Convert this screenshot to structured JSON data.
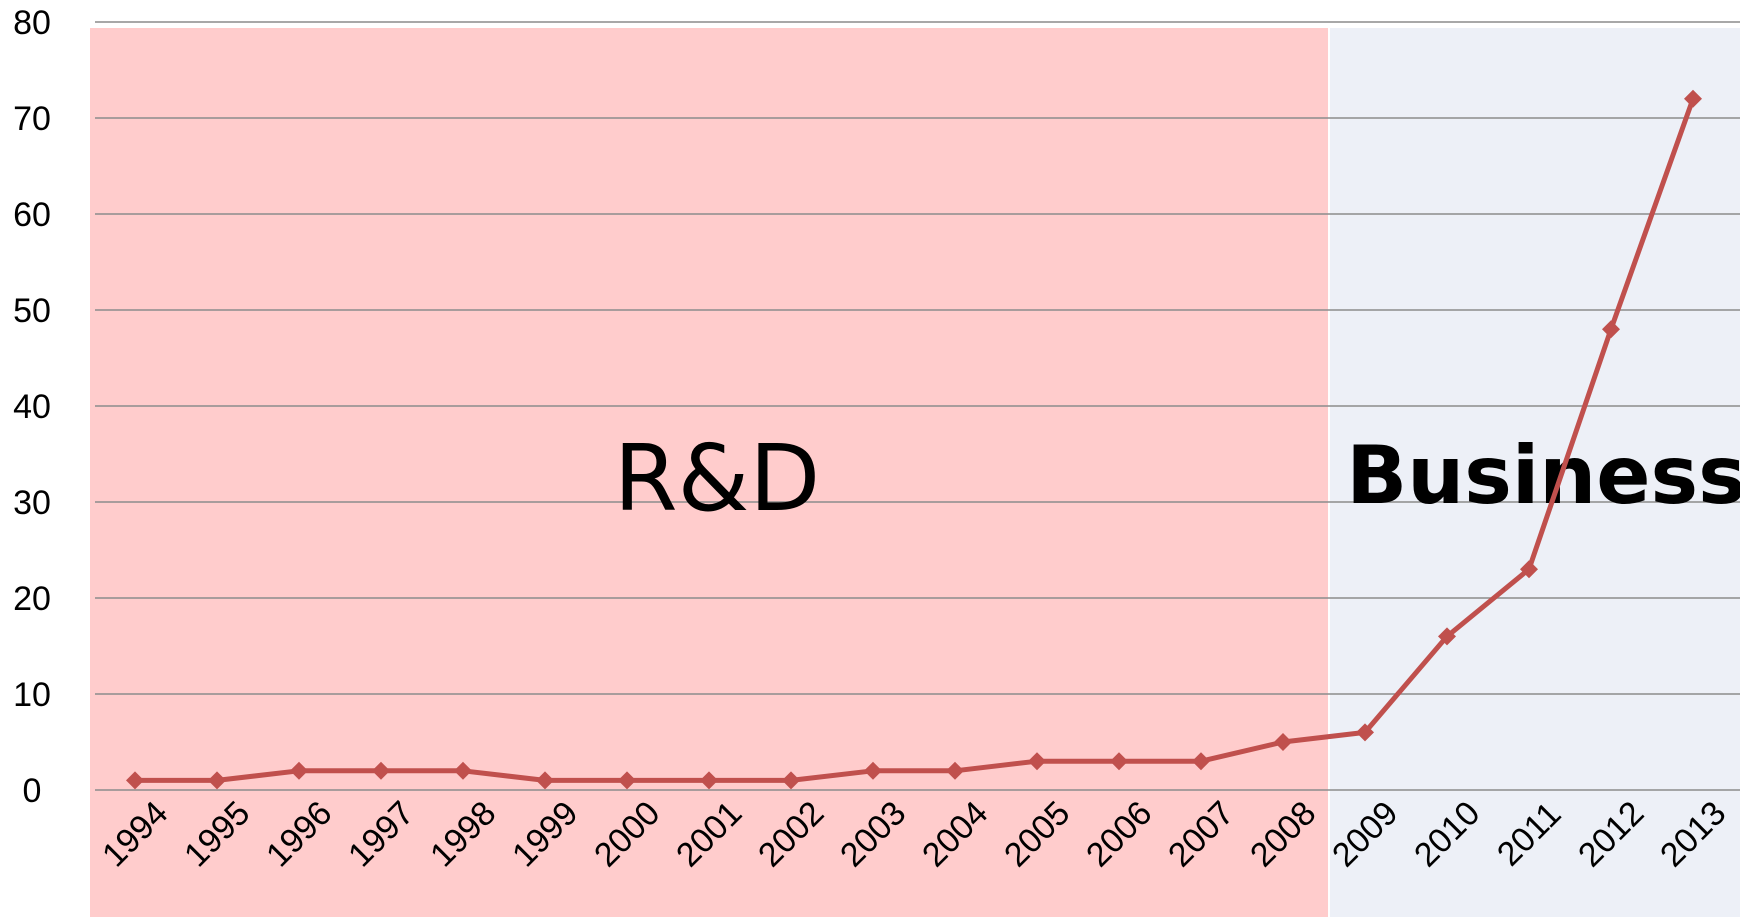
{
  "chart_data": {
    "type": "line",
    "title": "",
    "xlabel": "",
    "ylabel": "",
    "ylim": [
      0,
      80
    ],
    "yticks": [
      "0",
      "10",
      "20",
      "30",
      "40",
      "50",
      "60",
      "70",
      "80"
    ],
    "categories": [
      "1994",
      "1995",
      "1996",
      "1997",
      "1998",
      "1999",
      "2000",
      "2001",
      "2002",
      "2003",
      "2004",
      "2005",
      "2006",
      "2007",
      "2008",
      "2009",
      "2010",
      "2011",
      "2012",
      "2013"
    ],
    "series": [
      {
        "values": [
          1,
          1,
          2,
          2,
          2,
          1,
          1,
          1,
          1,
          2,
          2,
          3,
          3,
          3,
          5,
          6,
          16,
          23,
          48,
          72
        ]
      }
    ],
    "grid": true,
    "regions": [
      {
        "label": "R&D",
        "from": "1994",
        "to": "2008",
        "color": "#ffcccc"
      },
      {
        "label": "Business",
        "from": "2009",
        "to": "2013",
        "color": "#edf0f7"
      }
    ],
    "colors": {
      "line": "#c0504d",
      "grid": "#8c8c8c"
    }
  }
}
